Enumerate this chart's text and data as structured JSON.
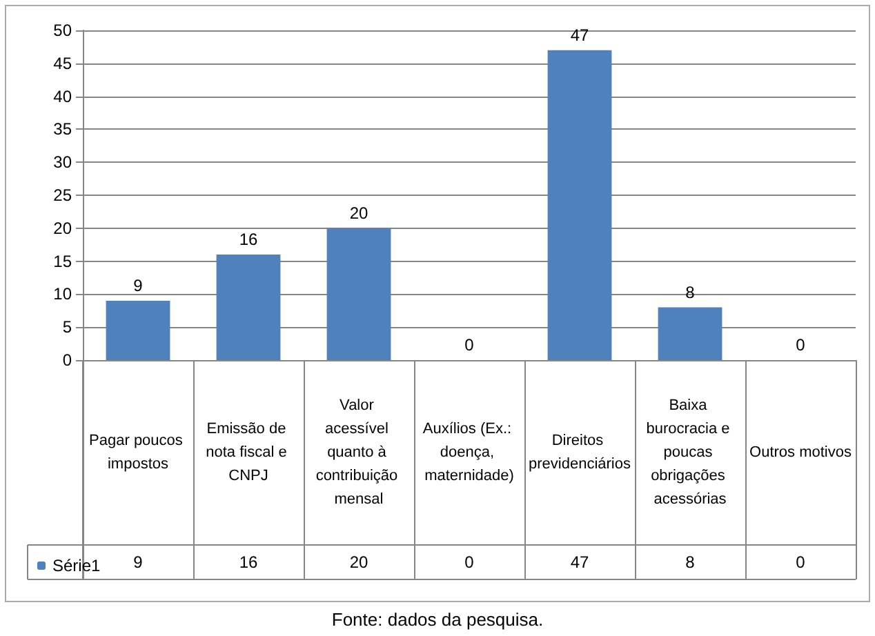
{
  "chart_data": {
    "type": "bar",
    "categories": [
      "Pagar poucos impostos",
      "Emissão de nota fiscal e CNPJ",
      "Valor acessível quanto à contribuição mensal",
      "Auxílios (Ex.: doença, maternidade)",
      "Direitos previdenciários",
      "Baixa burocracia e poucas obrigações acessórias",
      "Outros motivos"
    ],
    "series": [
      {
        "name": "Série1",
        "color": "#4f81bd",
        "values": [
          9,
          16,
          20,
          0,
          47,
          8,
          0
        ]
      }
    ],
    "ylim": [
      0,
      50
    ],
    "yticks": [
      0,
      5,
      10,
      15,
      20,
      25,
      30,
      35,
      40,
      45,
      50
    ],
    "value_labels": [
      "9",
      "16",
      "20",
      "0",
      "47",
      "8",
      "0"
    ],
    "grid": "y",
    "data_labels": true,
    "legend": "bottom left",
    "annotations": [
      "Fonte: dados da pesquisa."
    ]
  }
}
